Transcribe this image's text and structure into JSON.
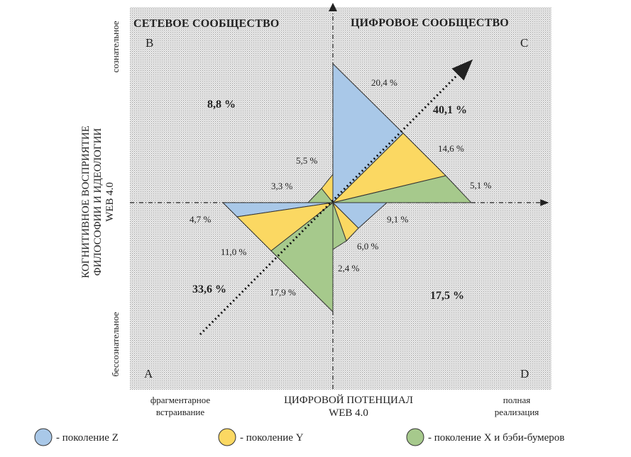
{
  "quadrants": {
    "top_left": "СЕТЕВОЕ СООБЩЕСТВО",
    "top_right": "ЦИФРОВОЕ СООБЩЕСТВО"
  },
  "corners": {
    "a": "A",
    "b": "B",
    "c": "C",
    "d": "D"
  },
  "y_axis": {
    "title_line1": "КОГНИТИВНОЕ ВОСПРИЯТИЕ",
    "title_line2": "ФИЛОСОФИИ И ИДЕОЛОГИИ",
    "title_line3": "WEB 4.0",
    "top_label": "сознательное",
    "bottom_label": "бессознательное"
  },
  "x_axis": {
    "title_line1": "ЦИФРОВОЙ ПОТЕНЦИАЛ",
    "title_line2": "WEB 4.0",
    "left_label_line1": "фрагментарное",
    "left_label_line2": "встраивание",
    "right_label_line1": "полная",
    "right_label_line2": "реализация"
  },
  "totals": {
    "B": "8,8 %",
    "C": "40,1 %",
    "A": "33,6 %",
    "D": "17,5 %"
  },
  "segments": {
    "c_z": "20,4 %",
    "c_y": "14,6 %",
    "c_x": "5,1 %",
    "b_y": "5,5 %",
    "b_x": "3,3 %",
    "a_z": "4,7 %",
    "a_y": "11,0 %",
    "a_x": "17,9 %",
    "d_z": "9,1 %",
    "d_y": "6,0 %",
    "d_x": "2,4 %"
  },
  "legend": {
    "z": "- поколение Z",
    "y": "- поколение Y",
    "x": "- поколение X и бэби-бумеров"
  },
  "colors": {
    "gen_z": "#a9c8e8",
    "gen_y": "#fbd862",
    "gen_x": "#a6c98c",
    "background_dots": "#c8c8c8"
  }
}
